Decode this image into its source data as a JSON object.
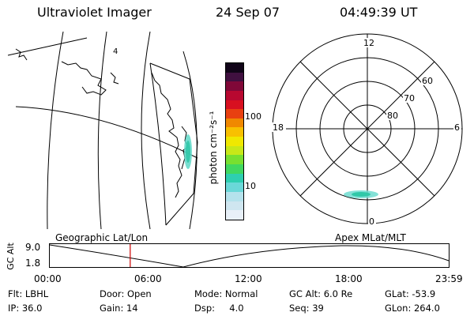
{
  "header": {
    "title": "Ultraviolet Imager",
    "date": "24 Sep 07",
    "time": "04:49:39 UT"
  },
  "map": {
    "corner_label": "4"
  },
  "colorbar": {
    "unit_label": "photon cm⁻²s⁻¹",
    "tick_100": "100",
    "tick_10": "10",
    "colors": [
      "#e8f0f8",
      "#cfe6f0",
      "#b5e2ec",
      "#6ad8d8",
      "#2ecfb0",
      "#40d860",
      "#78e030",
      "#c8e818",
      "#f0e800",
      "#f8c000",
      "#f08800",
      "#e84010",
      "#d81020",
      "#b80830",
      "#800838",
      "#401040",
      "#100418"
    ]
  },
  "polar": {
    "hour_12": "12",
    "hour_18": "18",
    "hour_6": "6",
    "hour_0": "0",
    "lat_60": "60",
    "lat_70": "70",
    "lat_80": "80"
  },
  "timeline": {
    "left_label": "Geographic Lat/Lon",
    "right_label": "Apex MLat/MLT",
    "y_axis_label": "GC Alt",
    "y_top": "9.0",
    "y_bottom": "1.8",
    "x_ticks": [
      "00:00",
      "06:00",
      "12:00",
      "18:00",
      "23:59"
    ],
    "marker_time_hours": 4.83,
    "marker_color": "#cc0000"
  },
  "footer": {
    "filter": "Flt: LBHL",
    "door": "Door: Open",
    "mode": "Mode: Normal",
    "gc_alt": "GC Alt: 6.0 Re",
    "glat": "GLat: -53.9",
    "ip": "IP: 36.0",
    "gain": "Gain: 14",
    "dsp": "Dsp:     4.0",
    "seq": "Seq: 39",
    "glon": "GLon: 264.0"
  }
}
